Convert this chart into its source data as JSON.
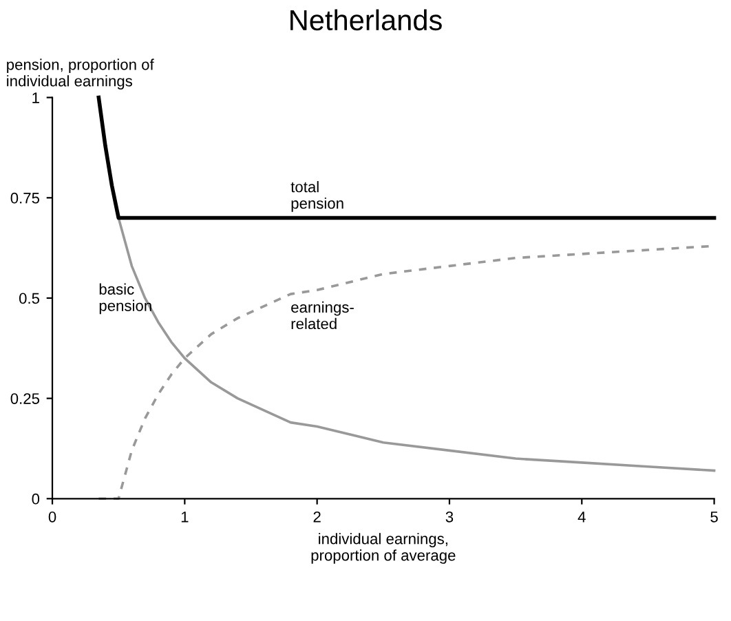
{
  "chart_data": {
    "type": "line",
    "title": "Netherlands",
    "xlabel": "individual earnings,\nproportion of average",
    "ylabel": "pension, proportion of\nindividual earnings",
    "xlim": [
      0,
      5
    ],
    "xticks": [
      0,
      1,
      2,
      3,
      4,
      5
    ],
    "ylim": [
      0,
      1
    ],
    "yticks": [
      0,
      0.25,
      0.5,
      0.75,
      1
    ],
    "grid": false,
    "legend": false,
    "marker": "none",
    "series": [
      {
        "name": "total\npension",
        "color": "#000000",
        "line_style": "solid",
        "x": [
          0.35,
          0.4,
          0.45,
          0.5,
          5
        ],
        "values": [
          1.0,
          0.88,
          0.78,
          0.7,
          0.7
        ]
      },
      {
        "name": "basic\npension",
        "color": "#999999",
        "line_style": "solid",
        "x": [
          0.35,
          0.4,
          0.45,
          0.5,
          0.6,
          0.7,
          0.8,
          0.9,
          1,
          1.2,
          1.4,
          1.6,
          1.8,
          2,
          2.5,
          3,
          3.5,
          4,
          4.5,
          5
        ],
        "values": [
          1.0,
          0.88,
          0.78,
          0.7,
          0.58,
          0.5,
          0.44,
          0.39,
          0.35,
          0.29,
          0.25,
          0.22,
          0.19,
          0.18,
          0.14,
          0.12,
          0.1,
          0.09,
          0.08,
          0.07
        ]
      },
      {
        "name": "earnings-\nrelated",
        "color": "#999999",
        "line_style": "dashed",
        "x": [
          0.35,
          0.4,
          0.45,
          0.5,
          0.6,
          0.7,
          0.8,
          0.9,
          1,
          1.2,
          1.4,
          1.6,
          1.8,
          2,
          2.5,
          3,
          3.5,
          4,
          4.5,
          5
        ],
        "values": [
          0,
          0,
          0,
          0,
          0.12,
          0.2,
          0.26,
          0.31,
          0.35,
          0.41,
          0.45,
          0.48,
          0.51,
          0.52,
          0.56,
          0.58,
          0.6,
          0.61,
          0.62,
          0.63
        ]
      }
    ]
  }
}
